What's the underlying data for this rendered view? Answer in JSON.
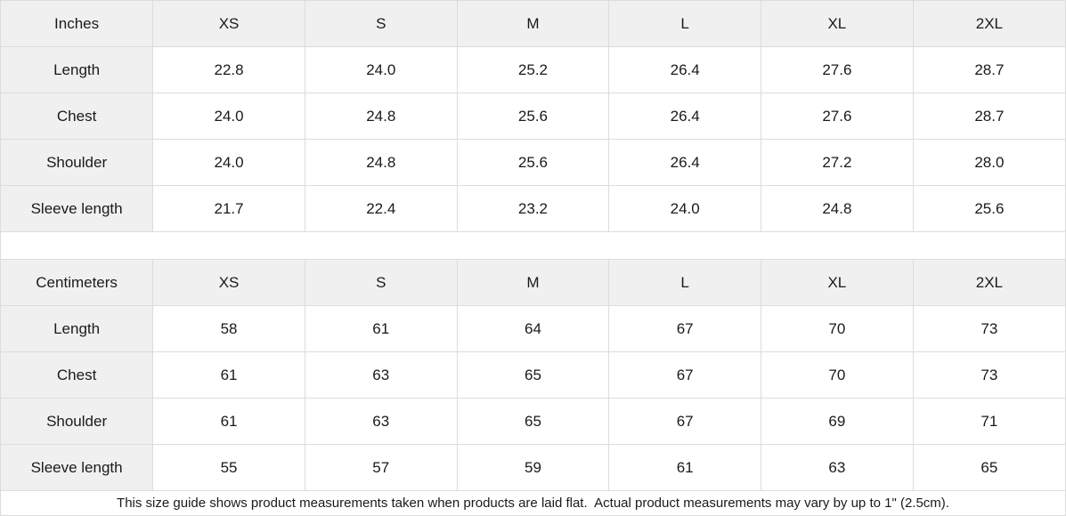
{
  "size_guide": {
    "tables": [
      {
        "unit_label": "Inches",
        "sizes": [
          "XS",
          "S",
          "M",
          "L",
          "XL",
          "2XL"
        ],
        "rows": [
          {
            "label": "Length",
            "values": [
              "22.8",
              "24.0",
              "25.2",
              "26.4",
              "27.6",
              "28.7"
            ]
          },
          {
            "label": "Chest",
            "values": [
              "24.0",
              "24.8",
              "25.6",
              "26.4",
              "27.6",
              "28.7"
            ]
          },
          {
            "label": "Shoulder",
            "values": [
              "24.0",
              "24.8",
              "25.6",
              "26.4",
              "27.2",
              "28.0"
            ]
          },
          {
            "label": "Sleeve length",
            "values": [
              "21.7",
              "22.4",
              "23.2",
              "24.0",
              "24.8",
              "25.6"
            ]
          }
        ]
      },
      {
        "unit_label": "Centimeters",
        "sizes": [
          "XS",
          "S",
          "M",
          "L",
          "XL",
          "2XL"
        ],
        "rows": [
          {
            "label": "Length",
            "values": [
              "58",
              "61",
              "64",
              "67",
              "70",
              "73"
            ]
          },
          {
            "label": "Chest",
            "values": [
              "61",
              "63",
              "65",
              "67",
              "70",
              "73"
            ]
          },
          {
            "label": "Shoulder",
            "values": [
              "61",
              "63",
              "65",
              "67",
              "69",
              "71"
            ]
          },
          {
            "label": "Sleeve length",
            "values": [
              "55",
              "57",
              "59",
              "61",
              "63",
              "65"
            ]
          }
        ]
      }
    ],
    "footnote": "This size guide shows product measurements taken when products are laid flat.  Actual product measurements may vary by up to 1\" (2.5cm)."
  },
  "colors": {
    "header_bg": "#f0f0f0",
    "border": "#dcdcdc",
    "text": "#1a1a1a"
  }
}
